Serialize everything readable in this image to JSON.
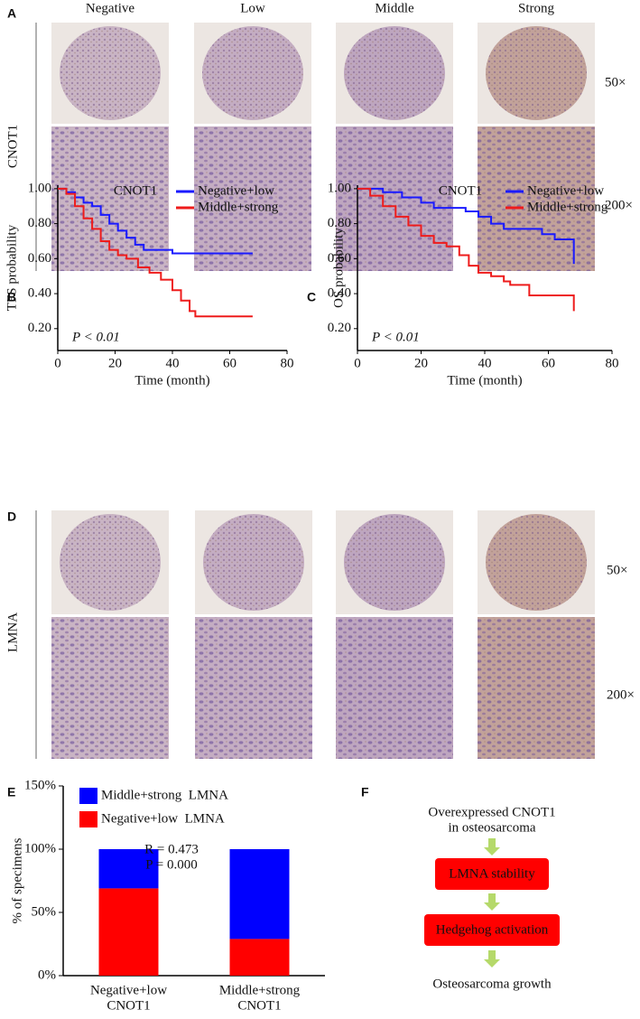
{
  "panel_a": {
    "label": "A",
    "columns": [
      "Negative",
      "Low",
      "Middle",
      "Strong"
    ],
    "row_label": "CNOT1",
    "magnifications": [
      "50×",
      "200×"
    ]
  },
  "chart_data": [
    {
      "label": "B",
      "type": "line",
      "step": true,
      "title": "CNOT1",
      "ylabel": "TFS probability",
      "xlabel": "Time (month)",
      "annotation": "P < 0.01",
      "xlim": [
        0,
        80
      ],
      "xticks": [
        0,
        20,
        40,
        60,
        80
      ],
      "ylim": [
        0.075,
        1.02
      ],
      "yticks": [
        {
          "value": 0.2,
          "label": "0.20"
        },
        {
          "value": 0.4,
          "label": "0.40"
        },
        {
          "value": 0.6,
          "label": "0.60"
        },
        {
          "value": 0.8,
          "label": "0.80"
        },
        {
          "value": 1.0,
          "label": "1.00"
        }
      ],
      "series": [
        {
          "name": "Negative+low",
          "color": "#1a1aff",
          "x": [
            0,
            3,
            6,
            9,
            12,
            15,
            18,
            21,
            24,
            27,
            30,
            36,
            40,
            68
          ],
          "values": [
            1.0,
            0.98,
            0.95,
            0.92,
            0.9,
            0.85,
            0.8,
            0.76,
            0.72,
            0.68,
            0.65,
            0.65,
            0.63,
            0.63
          ]
        },
        {
          "name": "Middle+strong",
          "color": "#ee1c1c",
          "x": [
            0,
            3,
            6,
            9,
            12,
            15,
            18,
            21,
            24,
            28,
            32,
            36,
            40,
            43,
            46,
            48,
            68
          ],
          "values": [
            1.0,
            0.97,
            0.9,
            0.83,
            0.77,
            0.7,
            0.65,
            0.62,
            0.6,
            0.55,
            0.52,
            0.48,
            0.42,
            0.36,
            0.3,
            0.27,
            0.27
          ]
        }
      ]
    },
    {
      "label": "C",
      "type": "line",
      "step": true,
      "title": "CNOT1",
      "ylabel": "OS probability",
      "xlabel": "Time (month)",
      "annotation": "P < 0.01",
      "xlim": [
        0,
        80
      ],
      "xticks": [
        0,
        20,
        40,
        60,
        80
      ],
      "ylim": [
        0.075,
        1.02
      ],
      "yticks": [
        {
          "value": 0.2,
          "label": "0.20"
        },
        {
          "value": 0.4,
          "label": "0.40"
        },
        {
          "value": 0.6,
          "label": "0.60"
        },
        {
          "value": 0.8,
          "label": "0.80"
        },
        {
          "value": 1.0,
          "label": "1.00"
        }
      ],
      "series": [
        {
          "name": "Negative+low",
          "color": "#1a1aff",
          "x": [
            0,
            8,
            14,
            20,
            24,
            34,
            38,
            42,
            46,
            58,
            62,
            67,
            68
          ],
          "values": [
            1.0,
            0.98,
            0.95,
            0.92,
            0.89,
            0.87,
            0.84,
            0.8,
            0.77,
            0.74,
            0.71,
            0.71,
            0.57
          ]
        },
        {
          "name": "Middle+strong",
          "color": "#ee1c1c",
          "x": [
            0,
            4,
            8,
            12,
            16,
            20,
            24,
            28,
            32,
            35,
            38,
            42,
            46,
            48,
            54,
            67,
            68
          ],
          "values": [
            1.0,
            0.96,
            0.9,
            0.84,
            0.79,
            0.73,
            0.69,
            0.67,
            0.62,
            0.56,
            0.52,
            0.5,
            0.47,
            0.45,
            0.39,
            0.39,
            0.3
          ]
        }
      ]
    },
    {
      "label": "E",
      "type": "bar",
      "stacked": true,
      "ylabel": "% of specimens",
      "annotations": [
        "R = 0.473",
        "P = 0.000"
      ],
      "categories": [
        [
          "Negative+low",
          "CNOT1"
        ],
        [
          "Middle+strong",
          "CNOT1"
        ]
      ],
      "ylim": [
        0,
        150
      ],
      "yticks": [
        {
          "value": 0,
          "label": "0%"
        },
        {
          "value": 50,
          "label": "50%"
        },
        {
          "value": 100,
          "label": "100%"
        },
        {
          "value": 150,
          "label": "150%"
        }
      ],
      "series": [
        {
          "name": "Negative+low  LMNA",
          "color": "#ff0000",
          "values": [
            69,
            29
          ]
        },
        {
          "name": "Middle+strong  LMNA",
          "color": "#0000ff",
          "values": [
            31,
            71
          ]
        }
      ]
    }
  ],
  "panel_d": {
    "label": "D",
    "row_label": "LMNA",
    "magnifications": [
      "50×",
      "200×"
    ]
  },
  "panel_f": {
    "label": "F",
    "top_text": [
      "Overexpressed CNOT1",
      "in osteosarcoma"
    ],
    "boxes": [
      "LMNA stability",
      "Hedgehog activation"
    ],
    "bottom_text": "Osteosarcoma growth"
  }
}
